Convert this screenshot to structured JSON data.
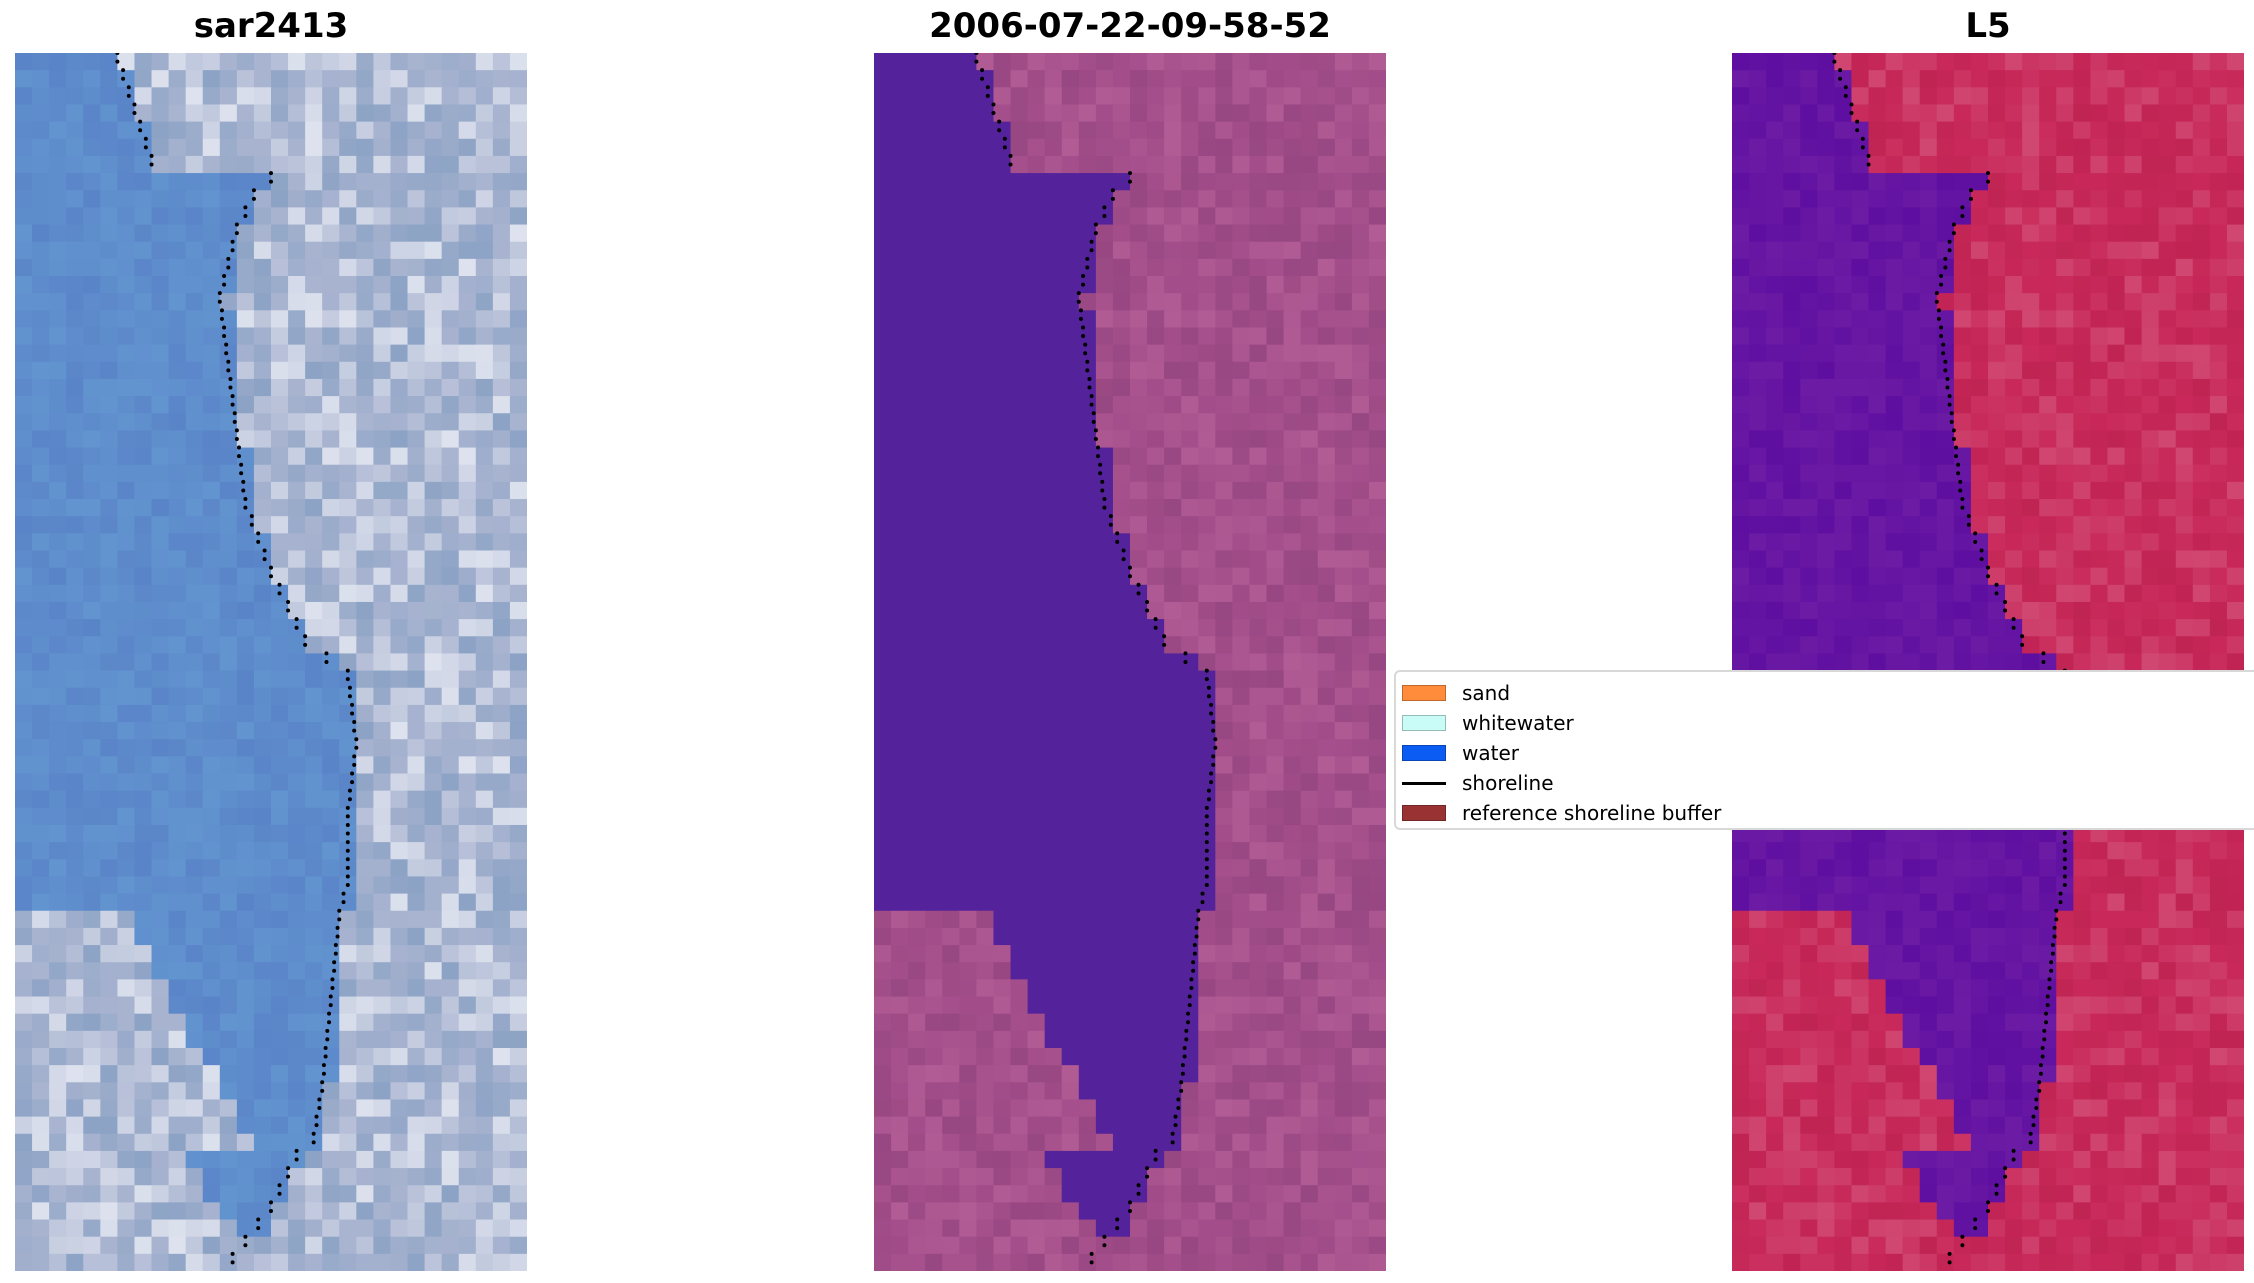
{
  "panels": [
    {
      "title": "sar2413",
      "style": "rgb"
    },
    {
      "title": "2006-07-22-09-58-52",
      "style": "classified"
    },
    {
      "title": "L5",
      "style": "index"
    }
  ],
  "legend": {
    "items": [
      {
        "label": "sand",
        "type": "patch",
        "color": "#ff8c3b"
      },
      {
        "label": "whitewater",
        "type": "patch",
        "color": "#c9fbf7"
      },
      {
        "label": "water",
        "type": "patch",
        "color": "#0b5cf2"
      },
      {
        "label": "shoreline",
        "type": "line",
        "color": "#000000"
      },
      {
        "label": "reference shoreline buffer",
        "type": "patch",
        "color": "#993333"
      }
    ]
  },
  "colors": {
    "water_classified": "#54229a",
    "land_classified": "#a34e8a",
    "water_rgb": "#5a84c8",
    "land_rgb": "#a9b4d0",
    "water_index": "#5e0ea0",
    "land_index": "#c8295a"
  }
}
